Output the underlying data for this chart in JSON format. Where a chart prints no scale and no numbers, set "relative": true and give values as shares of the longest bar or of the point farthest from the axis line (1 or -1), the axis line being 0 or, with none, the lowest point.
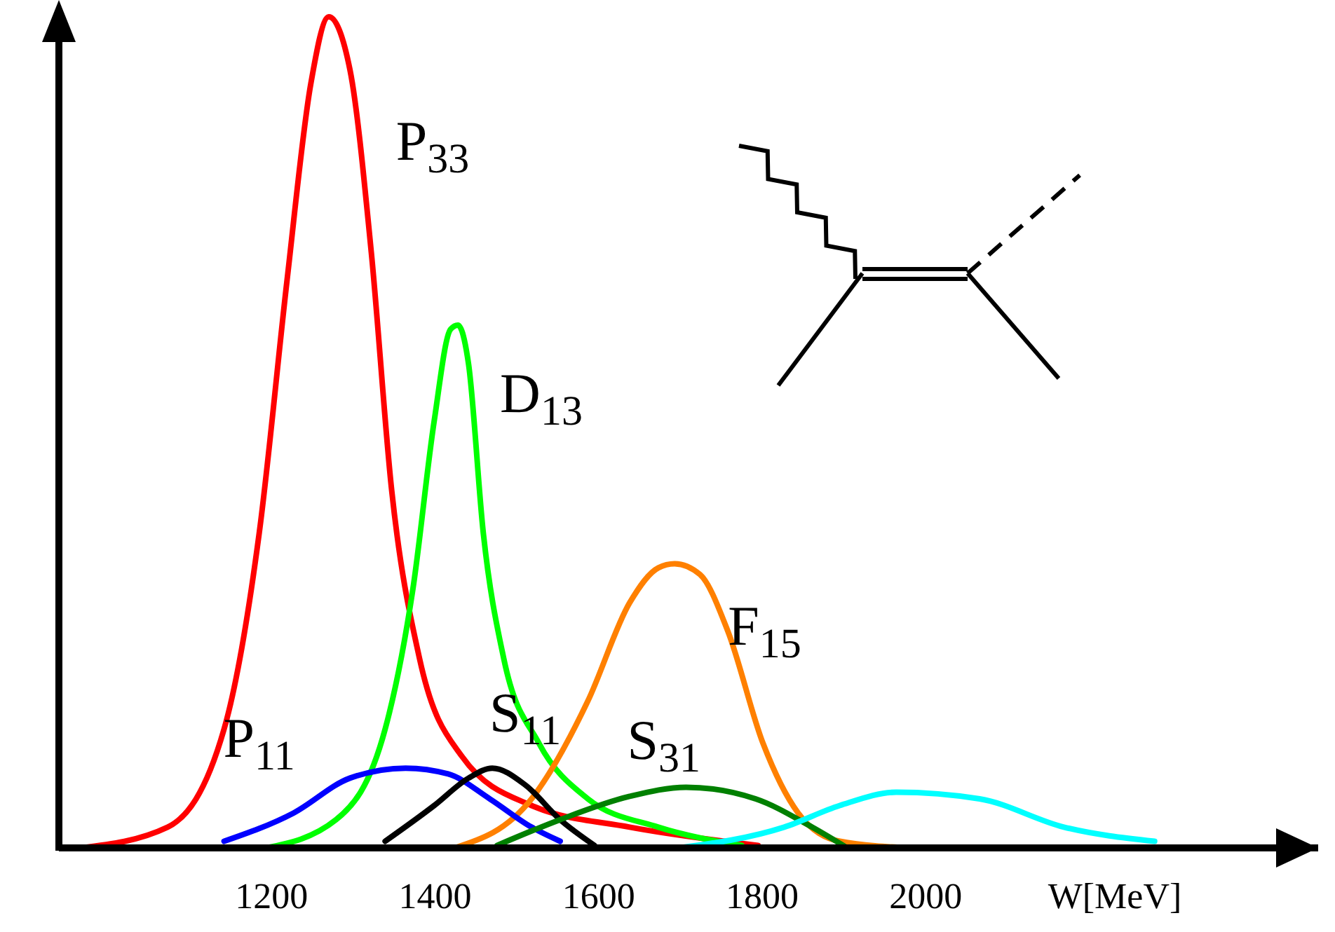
{
  "chart_data": {
    "type": "line",
    "relative": true,
    "xlabel": "W[MeV]",
    "xlim": [
      940,
      2480
    ],
    "xticks": [
      1200,
      1400,
      1600,
      1800,
      2000
    ],
    "series": [
      {
        "name": "P$_{33}$",
        "color": "#ff0000",
        "x": [
          967,
          1073,
          1142,
          1185,
          1219,
          1248,
          1270,
          1296,
          1322,
          1347,
          1381,
          1433,
          1518,
          1638,
          1795
        ],
        "values": [
          0,
          0.025,
          0.143,
          0.379,
          0.683,
          0.919,
          1,
          0.936,
          0.717,
          0.43,
          0.228,
          0.11,
          0.051,
          0.025,
          0.003
        ]
      },
      {
        "name": "D$_{13}$",
        "color": "#00ff00",
        "x": [
          1193,
          1279,
          1339,
          1373,
          1399,
          1419,
          1428,
          1441,
          1459,
          1484,
          1527,
          1587,
          1673,
          1775
        ],
        "values": [
          0,
          0.034,
          0.143,
          0.312,
          0.514,
          0.624,
          0.629,
          0.582,
          0.379,
          0.228,
          0.126,
          0.059,
          0.025,
          0.003
        ]
      },
      {
        "name": "F$_{15}$",
        "color": "#ff8000",
        "x": [
          1424,
          1518,
          1587,
          1638,
          1673,
          1693,
          1724,
          1758,
          1801,
          1844,
          1895,
          1981
        ],
        "values": [
          0,
          0.059,
          0.177,
          0.295,
          0.337,
          0.342,
          0.329,
          0.261,
          0.126,
          0.042,
          0.008,
          0
        ]
      },
      {
        "name": "P$_{11}$",
        "color": "#0000ff",
        "x": [
          1142,
          1227,
          1296,
          1364,
          1416,
          1467,
          1518,
          1553
        ],
        "values": [
          0.008,
          0.042,
          0.084,
          0.096,
          0.089,
          0.059,
          0.025,
          0.008
        ]
      },
      {
        "name": "S$_{11}$",
        "color": "#000000",
        "x": [
          1339,
          1399,
          1441,
          1470,
          1510,
          1553,
          1595
        ],
        "values": [
          0.008,
          0.051,
          0.084,
          0.096,
          0.076,
          0.034,
          0.003
        ]
      },
      {
        "name": "S$_{31}$",
        "color": "#008000",
        "x": [
          1476,
          1553,
          1638,
          1707,
          1792,
          1861,
          1904
        ],
        "values": [
          0.003,
          0.034,
          0.062,
          0.073,
          0.059,
          0.025,
          0
        ]
      },
      {
        "color": "#00ffff",
        "x": [
          1698,
          1827,
          1895,
          1964,
          2066,
          2169,
          2280
        ],
        "values": [
          0,
          0.025,
          0.051,
          0.067,
          0.059,
          0.025,
          0.008
        ]
      }
    ]
  }
}
